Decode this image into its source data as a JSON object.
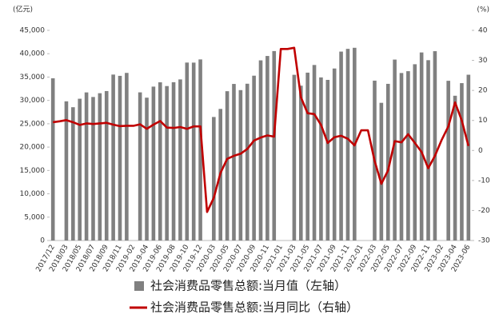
{
  "chart_data": {
    "type": "bar-line",
    "y_unit_label": "(亿元)",
    "y2_unit_label": "(%)",
    "categories": [
      "2017/12",
      null,
      "2018/03",
      null,
      "2018/05",
      null,
      "2018/07",
      null,
      "2018/09",
      null,
      "2018/11",
      null,
      "2019-02",
      null,
      "2019-04",
      null,
      "2019-06",
      null,
      "2019-08",
      null,
      "2019-10",
      null,
      "2019-12",
      null,
      "2020-03",
      null,
      "2020-05",
      null,
      "2020-07",
      null,
      "2020-09",
      null,
      "2020-11",
      null,
      "2021-01",
      null,
      "2021-03",
      null,
      "2021-05",
      null,
      "2021-07",
      null,
      "2021-09",
      null,
      "2021-11",
      null,
      "2022-01",
      null,
      "2022-03",
      null,
      "2022-05",
      null,
      "2022-07",
      null,
      "2022-09",
      null,
      "2022-11",
      null,
      "2023-02",
      null,
      "2023-04",
      null,
      "2023-06"
    ],
    "series": [
      {
        "name": "社会消费品零售总额:当月值（左轴）",
        "color": "#808080",
        "kind": "bar",
        "axis": "y",
        "values": [
          34734,
          null,
          29804,
          28542,
          30359,
          31713,
          30734,
          31542,
          32005,
          35534,
          35260,
          35893,
          null,
          31726,
          30586,
          32956,
          33878,
          33073,
          33896,
          34495,
          38104,
          38094,
          38777,
          null,
          26450,
          28178,
          31973,
          33526,
          32203,
          33571,
          35295,
          38576,
          39514,
          40566,
          null,
          null,
          35484,
          33153,
          35945,
          37586,
          34925,
          34395,
          36833,
          40454,
          41043,
          41269,
          null,
          null,
          34233,
          29483,
          33547,
          38742,
          35870,
          36258,
          37745,
          40271,
          38615,
          40542,
          null,
          34200,
          31000,
          33700,
          35500
        ]
      },
      {
        "name": "社会消费品零售总额:当月同比（右轴）",
        "color": "#c00000",
        "kind": "line",
        "axis": "y2",
        "values": [
          9.4,
          9.7,
          10.1,
          9.4,
          8.5,
          9.0,
          8.8,
          9.0,
          9.2,
          8.6,
          8.1,
          8.2,
          8.2,
          8.7,
          7.2,
          8.6,
          9.8,
          7.6,
          7.5,
          7.8,
          7.2,
          8.0,
          8.0,
          -20.5,
          -15.8,
          -7.5,
          -2.8,
          -1.8,
          -1.1,
          0.5,
          3.3,
          4.3,
          5.0,
          4.6,
          33.8,
          33.8,
          34.2,
          17.7,
          12.4,
          12.1,
          8.5,
          2.5,
          4.4,
          4.9,
          3.9,
          1.7,
          6.7,
          6.7,
          -3.5,
          -11.1,
          -6.7,
          3.1,
          2.7,
          5.4,
          2.5,
          -0.5,
          -5.9,
          -1.8,
          3.5,
          8,
          16,
          10,
          1.5
        ]
      }
    ],
    "ylim": [
      0,
      45000
    ],
    "yticks": [
      0,
      {
        "value": 5000,
        "label": "5,000"
      },
      {
        "value": 10000,
        "label": "10,000"
      },
      {
        "value": 15000,
        "label": "15,000"
      },
      {
        "value": 20000,
        "label": "20,000"
      },
      {
        "value": 25000,
        "label": "25,000"
      },
      {
        "value": 30000,
        "label": "30,000"
      },
      {
        "value": 35000,
        "label": "35,000"
      },
      {
        "value": 40000,
        "label": "40,000"
      },
      {
        "value": 45000,
        "label": "45,000"
      }
    ],
    "y2lim": [
      -30,
      40
    ],
    "y2ticks": [
      -30,
      -20,
      -10,
      0,
      10,
      20,
      30,
      40
    ],
    "legend": "bottom",
    "grid": false
  }
}
